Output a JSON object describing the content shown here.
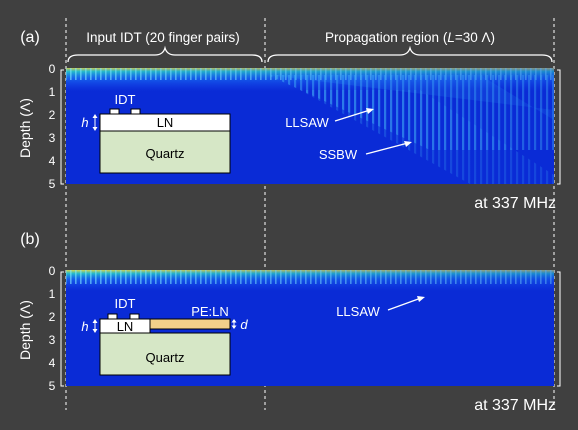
{
  "header": {
    "input_idt_label": "Input IDT (20 finger pairs)",
    "propagation_label_prefix": "Propagation region (",
    "propagation_label_L": "L",
    "propagation_label_suffix": "=30 Λ)"
  },
  "panel_a": {
    "tag": "(a)",
    "y_axis_label": "Depth (Λ)",
    "y_ticks": [
      "0",
      "1",
      "2",
      "3",
      "4",
      "5"
    ],
    "frequency_label": "at 337 MHz",
    "inset": {
      "idt_label": "IDT",
      "h_label": "h",
      "film_label": "LN",
      "substrate_label": "Quartz"
    },
    "annotations": [
      "LLSAW",
      "SSBW"
    ]
  },
  "panel_b": {
    "tag": "(b)",
    "y_axis_label": "Depth (Λ)",
    "y_ticks": [
      "0",
      "1",
      "2",
      "3",
      "4",
      "5"
    ],
    "frequency_label": "at 337 MHz",
    "inset": {
      "idt_label": "IDT",
      "h_label": "h",
      "film_label": "LN",
      "pe_label": "PE:LN",
      "d_label": "d",
      "substrate_label": "Quartz"
    },
    "annotations": [
      "LLSAW"
    ]
  },
  "colors": {
    "background": "#404040",
    "field_base": "#0a2bd6",
    "field_mid": "#1f8bff",
    "field_high": "#27d6c8",
    "field_peak": "#f0e83c",
    "substrate": "#d6e7c6",
    "pe_layer": "#f3d08a",
    "film": "#ffffff"
  }
}
